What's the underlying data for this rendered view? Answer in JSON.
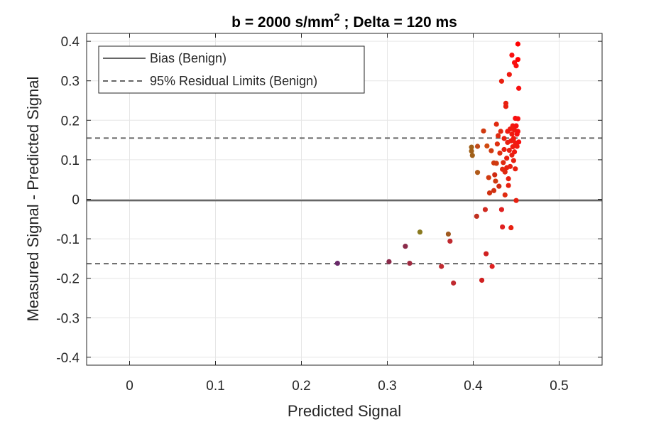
{
  "chart_data": {
    "type": "scatter",
    "title": "b = 2000 s/mm",
    "title_superscript": "2",
    "title_suffix": " ; Delta = 120 ms",
    "xlabel": "Predicted Signal",
    "ylabel": "Measured Signal - Predicted Signal",
    "xlim": [
      -0.05,
      0.55
    ],
    "ylim": [
      -0.42,
      0.42
    ],
    "xticks": [
      0,
      0.1,
      0.2,
      0.3,
      0.4,
      0.5
    ],
    "xtick_labels": [
      "0",
      "0.1",
      "0.2",
      "0.3",
      "0.4",
      "0.5"
    ],
    "yticks": [
      0.4,
      0.3,
      0.2,
      0.1,
      0,
      -0.1,
      -0.2,
      -0.3,
      -0.4
    ],
    "ytick_labels": [
      "0.4",
      "0.3",
      "0.2",
      "0.1",
      "0",
      "-0.1",
      "-0.2",
      "-0.3",
      "-0.4"
    ],
    "grid": true,
    "legend_position": "top-left",
    "legend": [
      {
        "label": "Bias (Benign)",
        "style": "solid"
      },
      {
        "label": "95% Residual Limits (Benign)",
        "style": "dashed"
      }
    ],
    "bias": -0.003,
    "limits": [
      0.155,
      -0.163
    ],
    "line_color": "#666666",
    "points": [
      {
        "x": 0.242,
        "y": -0.162,
        "c": "#6a2a6a"
      },
      {
        "x": 0.302,
        "y": -0.158,
        "c": "#8a2a4a"
      },
      {
        "x": 0.321,
        "y": -0.119,
        "c": "#8a2a4a"
      },
      {
        "x": 0.326,
        "y": -0.162,
        "c": "#a02a40"
      },
      {
        "x": 0.338,
        "y": -0.083,
        "c": "#8a7a20"
      },
      {
        "x": 0.363,
        "y": -0.17,
        "c": "#c02a30"
      },
      {
        "x": 0.371,
        "y": -0.088,
        "c": "#a05a20"
      },
      {
        "x": 0.373,
        "y": -0.106,
        "c": "#c02a30"
      },
      {
        "x": 0.377,
        "y": -0.212,
        "c": "#c02a30"
      },
      {
        "x": 0.398,
        "y": 0.132,
        "c": "#a0601a"
      },
      {
        "x": 0.398,
        "y": 0.122,
        "c": "#a0601a"
      },
      {
        "x": 0.399,
        "y": 0.111,
        "c": "#a0601a"
      },
      {
        "x": 0.404,
        "y": -0.043,
        "c": "#c03020"
      },
      {
        "x": 0.405,
        "y": 0.134,
        "c": "#c04a1a"
      },
      {
        "x": 0.405,
        "y": 0.068,
        "c": "#b05a1a"
      },
      {
        "x": 0.41,
        "y": -0.205,
        "c": "#d02020"
      },
      {
        "x": 0.412,
        "y": 0.173,
        "c": "#d03a10"
      },
      {
        "x": 0.414,
        "y": -0.026,
        "c": "#d02a20"
      },
      {
        "x": 0.415,
        "y": -0.138,
        "c": "#d02020"
      },
      {
        "x": 0.416,
        "y": 0.135,
        "c": "#d04a10"
      },
      {
        "x": 0.418,
        "y": 0.055,
        "c": "#d03a10"
      },
      {
        "x": 0.419,
        "y": 0.016,
        "c": "#d03010"
      },
      {
        "x": 0.421,
        "y": 0.123,
        "c": "#d03a10"
      },
      {
        "x": 0.422,
        "y": -0.17,
        "c": "#e02020"
      },
      {
        "x": 0.424,
        "y": 0.092,
        "c": "#d03a10"
      },
      {
        "x": 0.424,
        "y": 0.022,
        "c": "#d03010"
      },
      {
        "x": 0.425,
        "y": 0.062,
        "c": "#d02a10"
      },
      {
        "x": 0.426,
        "y": 0.046,
        "c": "#d03a10"
      },
      {
        "x": 0.427,
        "y": 0.19,
        "c": "#e02a10"
      },
      {
        "x": 0.427,
        "y": 0.091,
        "c": "#d03a10"
      },
      {
        "x": 0.428,
        "y": 0.14,
        "c": "#e03010"
      },
      {
        "x": 0.429,
        "y": 0.161,
        "c": "#e02a10"
      },
      {
        "x": 0.43,
        "y": 0.033,
        "c": "#d02a10"
      },
      {
        "x": 0.431,
        "y": 0.117,
        "c": "#e03010"
      },
      {
        "x": 0.432,
        "y": 0.172,
        "c": "#e02a10"
      },
      {
        "x": 0.433,
        "y": -0.026,
        "c": "#e02020"
      },
      {
        "x": 0.433,
        "y": 0.299,
        "c": "#e82010"
      },
      {
        "x": 0.434,
        "y": 0.076,
        "c": "#e02a10"
      },
      {
        "x": 0.434,
        "y": -0.07,
        "c": "#e02020"
      },
      {
        "x": 0.435,
        "y": 0.093,
        "c": "#e02a10"
      },
      {
        "x": 0.436,
        "y": 0.154,
        "c": "#e82010"
      },
      {
        "x": 0.436,
        "y": 0.126,
        "c": "#e82010"
      },
      {
        "x": 0.437,
        "y": 0.069,
        "c": "#e02a10"
      },
      {
        "x": 0.437,
        "y": 0.011,
        "c": "#e02a10"
      },
      {
        "x": 0.438,
        "y": 0.243,
        "c": "#e82010"
      },
      {
        "x": 0.438,
        "y": 0.235,
        "c": "#e82010"
      },
      {
        "x": 0.439,
        "y": 0.104,
        "c": "#e82010"
      },
      {
        "x": 0.439,
        "y": 0.08,
        "c": "#e82010"
      },
      {
        "x": 0.44,
        "y": 0.172,
        "c": "#f01a10"
      },
      {
        "x": 0.44,
        "y": 0.144,
        "c": "#e82010"
      },
      {
        "x": 0.441,
        "y": 0.052,
        "c": "#e82010"
      },
      {
        "x": 0.441,
        "y": 0.035,
        "c": "#e82010"
      },
      {
        "x": 0.442,
        "y": 0.316,
        "c": "#f01a10"
      },
      {
        "x": 0.442,
        "y": 0.124,
        "c": "#e82010"
      },
      {
        "x": 0.443,
        "y": 0.178,
        "c": "#f01a10"
      },
      {
        "x": 0.443,
        "y": 0.083,
        "c": "#e82010"
      },
      {
        "x": 0.444,
        "y": 0.148,
        "c": "#f01a10"
      },
      {
        "x": 0.444,
        "y": -0.072,
        "c": "#e82010"
      },
      {
        "x": 0.445,
        "y": 0.365,
        "c": "#f81010"
      },
      {
        "x": 0.445,
        "y": 0.165,
        "c": "#f01a10"
      },
      {
        "x": 0.445,
        "y": 0.112,
        "c": "#e82010"
      },
      {
        "x": 0.446,
        "y": 0.186,
        "c": "#f01a10"
      },
      {
        "x": 0.446,
        "y": 0.133,
        "c": "#f01a10"
      },
      {
        "x": 0.447,
        "y": 0.098,
        "c": "#e82010"
      },
      {
        "x": 0.447,
        "y": 0.154,
        "c": "#f01a10"
      },
      {
        "x": 0.448,
        "y": 0.346,
        "c": "#f81010"
      },
      {
        "x": 0.448,
        "y": 0.175,
        "c": "#f01a10"
      },
      {
        "x": 0.448,
        "y": 0.12,
        "c": "#f01a10"
      },
      {
        "x": 0.449,
        "y": 0.205,
        "c": "#f81010"
      },
      {
        "x": 0.449,
        "y": 0.143,
        "c": "#f01a10"
      },
      {
        "x": 0.449,
        "y": 0.077,
        "c": "#e82010"
      },
      {
        "x": 0.45,
        "y": 0.338,
        "c": "#f81010"
      },
      {
        "x": 0.45,
        "y": 0.186,
        "c": "#f81010"
      },
      {
        "x": 0.45,
        "y": -0.003,
        "c": "#e82010"
      },
      {
        "x": 0.451,
        "y": 0.165,
        "c": "#f81010"
      },
      {
        "x": 0.451,
        "y": 0.134,
        "c": "#f01a10"
      },
      {
        "x": 0.452,
        "y": 0.354,
        "c": "#ff0000"
      },
      {
        "x": 0.452,
        "y": 0.204,
        "c": "#f81010"
      },
      {
        "x": 0.452,
        "y": 0.172,
        "c": "#f81010"
      },
      {
        "x": 0.452,
        "y": 0.393,
        "c": "#ff0000"
      },
      {
        "x": 0.453,
        "y": 0.281,
        "c": "#f81010"
      },
      {
        "x": 0.453,
        "y": 0.145,
        "c": "#f81010"
      }
    ]
  }
}
